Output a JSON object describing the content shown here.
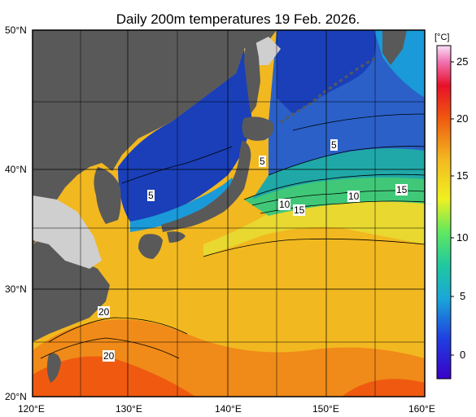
{
  "title": "Daily 200m temperatures 19 Feb. 2026.",
  "map": {
    "lon_ticks": [
      "120°E",
      "130°E",
      "140°E",
      "150°E",
      "160°E"
    ],
    "lat_ticks": [
      "50°N",
      "40°N",
      "30°N",
      "20°N"
    ],
    "lon_range": [
      120,
      160
    ],
    "lat_range": [
      20,
      50
    ]
  },
  "colorbar": {
    "unit": "[°C]",
    "ticks": [
      "25",
      "20",
      "15",
      "10",
      "5",
      "0"
    ],
    "range": [
      -2,
      27
    ]
  },
  "contour_labels": [
    {
      "text": "5"
    },
    {
      "text": "5"
    },
    {
      "text": "5"
    },
    {
      "text": "10"
    },
    {
      "text": "15"
    },
    {
      "text": "10"
    },
    {
      "text": "15"
    },
    {
      "text": "20"
    },
    {
      "text": "20"
    }
  ],
  "colors": {
    "land": "#595959",
    "sea_ice_gray": "#cfcfcf",
    "cold": "#1a3fb8",
    "warm": "#f2b820",
    "hot": "#f05a10"
  }
}
